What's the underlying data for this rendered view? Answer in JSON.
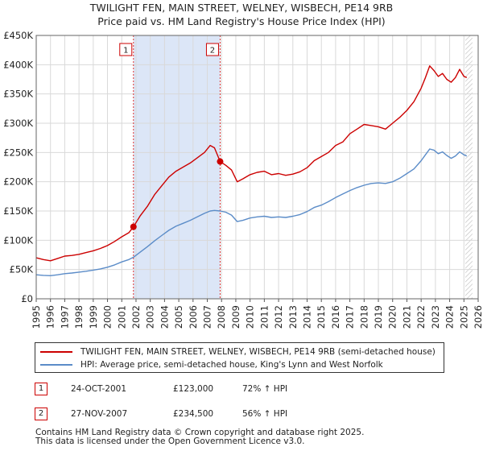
{
  "chart_data": {
    "type": "line",
    "title": "TWILIGHT FEN, MAIN STREET, WELNEY, WISBECH, PE14 9RB",
    "subtitle": "Price paid vs. HM Land Registry's House Price Index (HPI)",
    "xlabel": "",
    "ylabel": "",
    "xlim": [
      1995,
      2026
    ],
    "ylim": [
      0,
      450000
    ],
    "yticks": [
      0,
      50000,
      100000,
      150000,
      200000,
      250000,
      300000,
      350000,
      400000,
      450000
    ],
    "ytick_labels": [
      "£0",
      "£50K",
      "£100K",
      "£150K",
      "£200K",
      "£250K",
      "£300K",
      "£350K",
      "£400K",
      "£450K"
    ],
    "xticks": [
      1995,
      1996,
      1997,
      1998,
      1999,
      2000,
      2001,
      2002,
      2003,
      2004,
      2005,
      2006,
      2007,
      2008,
      2009,
      2010,
      2011,
      2012,
      2013,
      2014,
      2015,
      2016,
      2017,
      2018,
      2019,
      2020,
      2021,
      2022,
      2023,
      2024,
      2025,
      2026
    ],
    "grid": true,
    "shaded_span": [
      2001.82,
      2007.9
    ],
    "forecast_hatch_from": 2025.1,
    "series": [
      {
        "name": "TWILIGHT FEN, MAIN STREET, WELNEY, WISBECH, PE14 9RB (semi-detached house)",
        "color": "#cc0000",
        "x": [
          1995.0,
          1995.5,
          1996.0,
          1996.5,
          1997.0,
          1997.5,
          1998.0,
          1998.5,
          1999.0,
          1999.5,
          2000.0,
          2000.5,
          2001.0,
          2001.5,
          2001.82,
          2002.3,
          2002.8,
          2003.3,
          2003.8,
          2004.3,
          2004.8,
          2005.3,
          2005.8,
          2006.3,
          2006.8,
          2007.2,
          2007.5,
          2007.9,
          2008.3,
          2008.7,
          2009.1,
          2009.5,
          2010.0,
          2010.5,
          2011.0,
          2011.5,
          2012.0,
          2012.5,
          2013.0,
          2013.5,
          2014.0,
          2014.5,
          2015.0,
          2015.5,
          2016.0,
          2016.5,
          2017.0,
          2017.5,
          2018.0,
          2018.5,
          2019.0,
          2019.5,
          2020.0,
          2020.5,
          2021.0,
          2021.5,
          2022.0,
          2022.3,
          2022.6,
          2022.9,
          2023.2,
          2023.5,
          2023.8,
          2024.1,
          2024.4,
          2024.7,
          2025.0,
          2025.2
        ],
        "values": [
          70000,
          67000,
          65000,
          69000,
          73000,
          74000,
          76000,
          79000,
          82000,
          86000,
          91000,
          98000,
          106000,
          113000,
          123000,
          142000,
          158000,
          178000,
          193000,
          208000,
          218000,
          225000,
          232000,
          241000,
          250000,
          262000,
          258000,
          234500,
          228000,
          220000,
          200000,
          205000,
          212000,
          216000,
          218000,
          212000,
          214000,
          211000,
          213000,
          217000,
          224000,
          236000,
          243000,
          250000,
          262000,
          268000,
          282000,
          290000,
          298000,
          296000,
          294000,
          290000,
          300000,
          310000,
          322000,
          337000,
          360000,
          378000,
          398000,
          390000,
          380000,
          385000,
          375000,
          370000,
          378000,
          392000,
          380000,
          378000
        ]
      },
      {
        "name": "HPI: Average price, semi-detached house, King's Lynn and West Norfolk",
        "color": "#5b8cc8",
        "x": [
          1995.0,
          1995.5,
          1996.0,
          1996.5,
          1997.0,
          1997.5,
          1998.0,
          1998.5,
          1999.0,
          1999.5,
          2000.0,
          2000.5,
          2001.0,
          2001.5,
          2001.82,
          2002.3,
          2002.8,
          2003.3,
          2003.8,
          2004.3,
          2004.8,
          2005.3,
          2005.8,
          2006.3,
          2006.8,
          2007.2,
          2007.5,
          2007.9,
          2008.3,
          2008.7,
          2009.1,
          2009.5,
          2010.0,
          2010.5,
          2011.0,
          2011.5,
          2012.0,
          2012.5,
          2013.0,
          2013.5,
          2014.0,
          2014.5,
          2015.0,
          2015.5,
          2016.0,
          2016.5,
          2017.0,
          2017.5,
          2018.0,
          2018.5,
          2019.0,
          2019.5,
          2020.0,
          2020.5,
          2021.0,
          2021.5,
          2022.0,
          2022.3,
          2022.6,
          2022.9,
          2023.2,
          2023.5,
          2023.8,
          2024.1,
          2024.4,
          2024.7,
          2025.0,
          2025.2
        ],
        "values": [
          41000,
          40000,
          39500,
          41000,
          43000,
          44000,
          45500,
          47000,
          49000,
          51000,
          54000,
          58000,
          63000,
          67000,
          71000,
          80000,
          89000,
          99000,
          108000,
          117000,
          124000,
          129000,
          134000,
          140000,
          146000,
          150000,
          151000,
          150000,
          148000,
          143000,
          132000,
          134000,
          138000,
          140000,
          141000,
          139000,
          140000,
          139000,
          141000,
          144000,
          149000,
          156000,
          160000,
          166000,
          173000,
          179000,
          185000,
          190000,
          194000,
          197000,
          198000,
          197000,
          200000,
          206000,
          214000,
          222000,
          236000,
          246000,
          256000,
          254000,
          248000,
          251000,
          245000,
          240000,
          244000,
          251000,
          246000,
          244000
        ]
      }
    ],
    "markers": [
      {
        "label": "1",
        "x": 2001.82,
        "value": 123000
      },
      {
        "label": "2",
        "x": 2007.9,
        "value": 234500
      }
    ]
  },
  "legend": {
    "entries": [
      {
        "label": "TWILIGHT FEN, MAIN STREET, WELNEY, WISBECH, PE14 9RB (semi-detached house)",
        "color": "#cc0000"
      },
      {
        "label": "HPI: Average price, semi-detached house, King's Lynn and West Norfolk",
        "color": "#5b8cc8"
      }
    ]
  },
  "transactions": [
    {
      "num": "1",
      "date": "24-OCT-2001",
      "price": "£123,000",
      "hpi": "72% ↑ HPI"
    },
    {
      "num": "2",
      "date": "27-NOV-2007",
      "price": "£234,500",
      "hpi": "56% ↑ HPI"
    }
  ],
  "footer": {
    "line1": "Contains HM Land Registry data © Crown copyright and database right 2025.",
    "line2": "This data is licensed under the Open Government Licence v3.0."
  }
}
